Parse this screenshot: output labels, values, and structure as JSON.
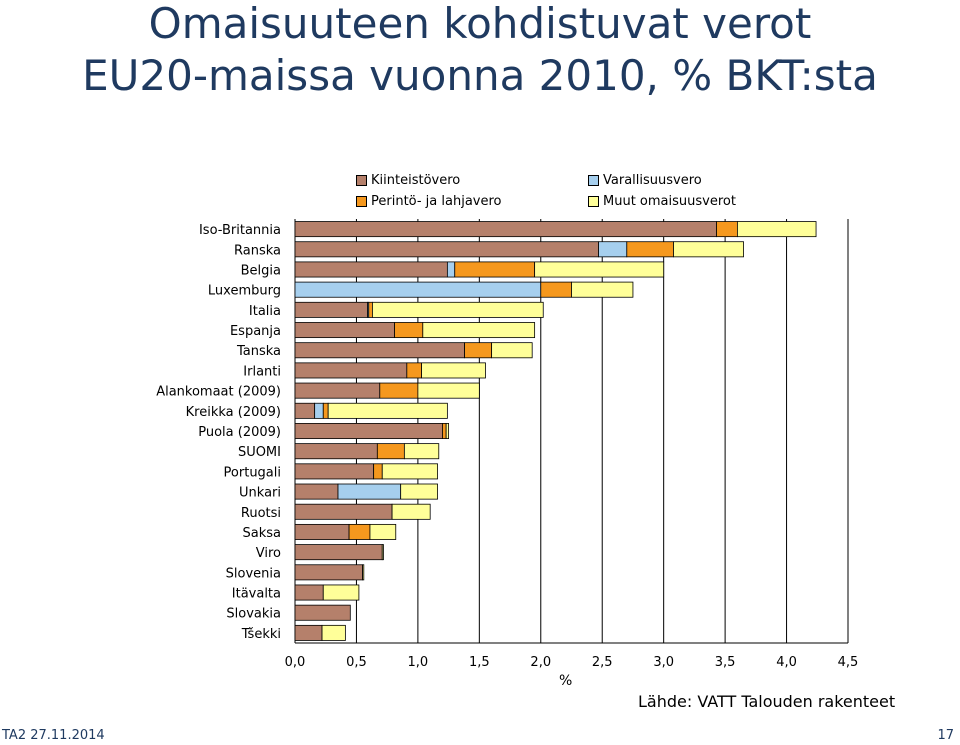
{
  "slide": {
    "title_line1": "Omaisuuteen kohdistuvat verot",
    "title_line2": "EU20-maissa vuonna 2010, % BKT:sta",
    "source": "Lähde: VATT Talouden rakenteet",
    "footer_left": "TA2 27.11.2014",
    "page_number": "17"
  },
  "chart_data": {
    "type": "bar",
    "orientation": "horizontal",
    "stacked": true,
    "title": "",
    "xlabel": "%",
    "ylabel": "",
    "xlim": [
      0,
      4.5
    ],
    "x_ticks": [
      "0,0",
      "0,5",
      "1,0",
      "1,5",
      "2,0",
      "2,5",
      "3,0",
      "3,5",
      "4,0",
      "4,5"
    ],
    "grid": "vertical",
    "legend_position": "top",
    "categories": [
      "Iso-Britannia",
      "Ranska",
      "Belgia",
      "Luxemburg",
      "Italia",
      "Espanja",
      "Tanska",
      "Irlanti",
      "Alankomaat (2009)",
      "Kreikka (2009)",
      "Puola (2009)",
      "SUOMI",
      "Portugali",
      "Unkari",
      "Ruotsi",
      "Saksa",
      "Viro",
      "Slovenia",
      "Itävalta",
      "Slovakia",
      "Tšekki"
    ],
    "series": [
      {
        "name": "Kiinteistövero",
        "color": "#b5806b",
        "values": [
          3.43,
          2.47,
          1.24,
          0.0,
          0.59,
          0.81,
          1.38,
          0.91,
          0.69,
          0.16,
          1.2,
          0.67,
          0.64,
          0.35,
          0.79,
          0.44,
          0.71,
          0.55,
          0.23,
          0.45,
          0.22
        ]
      },
      {
        "name": "Varallisuusvero",
        "color": "#a6cfee",
        "values": [
          0.0,
          0.23,
          0.06,
          2.0,
          0.01,
          0.0,
          0.0,
          0.0,
          0.0,
          0.07,
          0.0,
          0.0,
          0.0,
          0.51,
          0.0,
          0.0,
          0.0,
          0.0,
          0.0,
          0.0,
          0.0
        ]
      },
      {
        "name": "Perintö- ja lahjavero",
        "color": "#f5981e",
        "values": [
          0.17,
          0.38,
          0.65,
          0.25,
          0.03,
          0.23,
          0.22,
          0.12,
          0.31,
          0.04,
          0.03,
          0.22,
          0.07,
          0.0,
          0.0,
          0.17,
          0.0,
          0.0,
          0.0,
          0.0,
          0.0
        ]
      },
      {
        "name": "Muut omaisuusverot",
        "color": "#ffff99",
        "values": [
          0.64,
          0.57,
          1.05,
          0.5,
          1.39,
          0.91,
          0.33,
          0.52,
          0.5,
          0.97,
          0.02,
          0.28,
          0.45,
          0.3,
          0.31,
          0.21,
          0.01,
          0.01,
          0.29,
          0.0,
          0.19
        ]
      }
    ]
  }
}
